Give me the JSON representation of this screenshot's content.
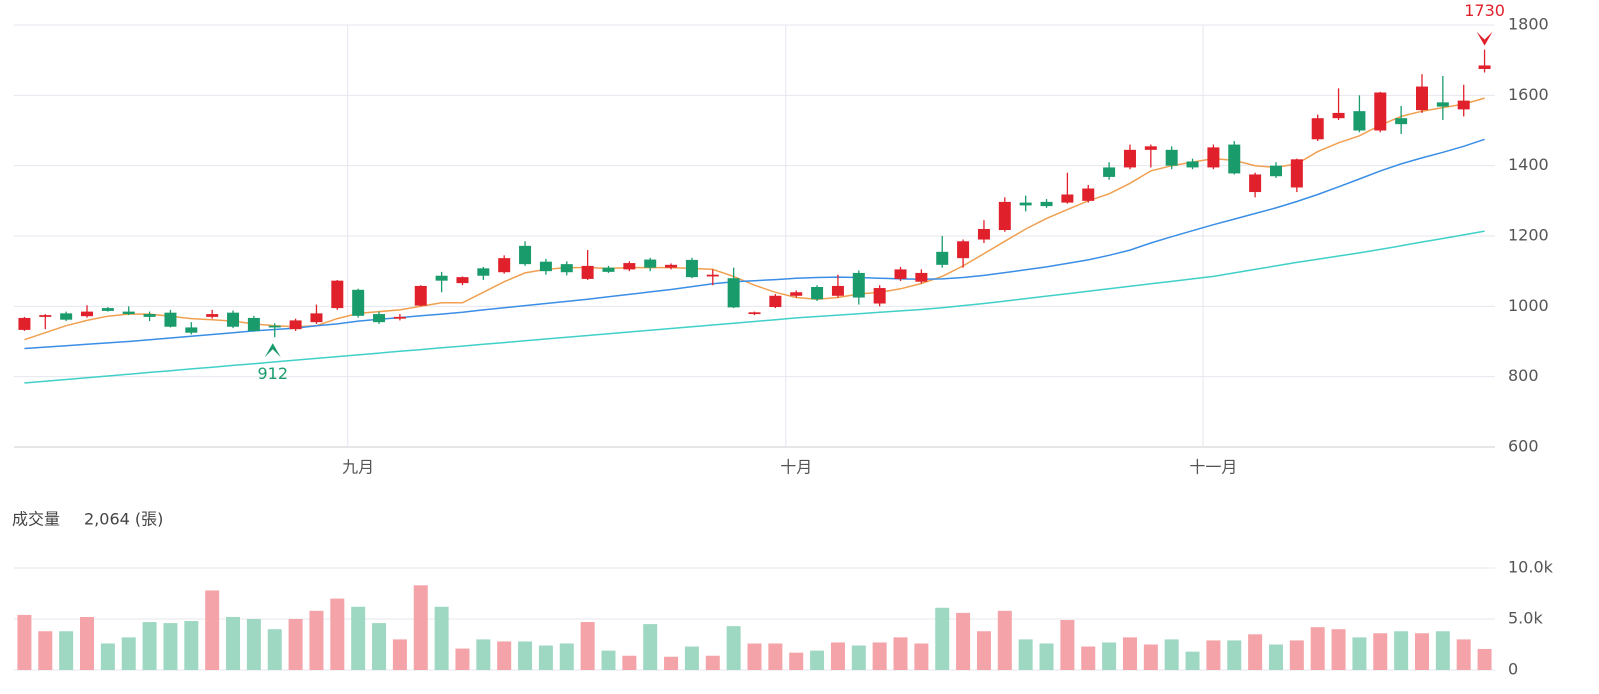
{
  "chart_data": [
    {
      "type": "candlestick",
      "categories": [
        null,
        null,
        null,
        null,
        null,
        null,
        null,
        null,
        null,
        null,
        null,
        null,
        null,
        null,
        null,
        null,
        "九月",
        null,
        null,
        null,
        null,
        null,
        null,
        null,
        null,
        null,
        null,
        null,
        null,
        null,
        null,
        null,
        null,
        null,
        null,
        null,
        null,
        "十月",
        null,
        null,
        null,
        null,
        null,
        null,
        null,
        null,
        null,
        null,
        null,
        null,
        null,
        null,
        null,
        null,
        null,
        null,
        null,
        "十一月",
        null,
        null,
        null,
        null,
        null,
        null,
        null,
        null,
        null,
        null,
        null,
        null,
        null
      ],
      "open": [
        933,
        970,
        980,
        972,
        995,
        985,
        978,
        982,
        940,
        970,
        982,
        967,
        945,
        935,
        955,
        995,
        1047,
        978,
        965,
        1002,
        1087,
        1066,
        1108,
        1097,
        1172,
        1127,
        1120,
        1078,
        1110,
        1105,
        1133,
        1110,
        1132,
        1085,
        1080,
        978,
        998,
        1030,
        1055,
        1030,
        1095,
        1008,
        1078,
        1070,
        1155,
        1137,
        1190,
        1217,
        1295,
        1297,
        1295,
        1300,
        1395,
        1395,
        1445,
        1445,
        1412,
        1395,
        1460,
        1325,
        1400,
        1338,
        1475,
        1535,
        1555,
        1500,
        1535,
        1558,
        1580,
        1560,
        1675
      ],
      "high": [
        970,
        978,
        985,
        1003,
        998,
        1000,
        985,
        990,
        955,
        990,
        988,
        973,
        952,
        965,
        1005,
        1075,
        1050,
        985,
        978,
        1060,
        1098,
        1085,
        1112,
        1145,
        1185,
        1135,
        1128,
        1160,
        1115,
        1128,
        1138,
        1122,
        1138,
        1105,
        1110,
        985,
        1035,
        1045,
        1060,
        1090,
        1102,
        1060,
        1112,
        1105,
        1200,
        1190,
        1245,
        1310,
        1315,
        1305,
        1380,
        1345,
        1410,
        1460,
        1460,
        1455,
        1420,
        1460,
        1470,
        1380,
        1410,
        1420,
        1545,
        1620,
        1600,
        1610,
        1570,
        1660,
        1655,
        1630,
        1730
      ],
      "low": [
        930,
        935,
        958,
        968,
        985,
        975,
        958,
        940,
        920,
        965,
        938,
        928,
        912,
        930,
        950,
        990,
        968,
        950,
        960,
        1000,
        1040,
        1060,
        1075,
        1093,
        1115,
        1090,
        1088,
        1075,
        1095,
        1100,
        1100,
        1105,
        1080,
        1060,
        995,
        975,
        995,
        1025,
        1015,
        1025,
        1005,
        1000,
        1072,
        1065,
        1110,
        1110,
        1180,
        1212,
        1270,
        1280,
        1292,
        1295,
        1360,
        1390,
        1395,
        1390,
        1390,
        1390,
        1375,
        1310,
        1365,
        1325,
        1470,
        1530,
        1495,
        1495,
        1490,
        1550,
        1530,
        1540,
        1665
      ],
      "close": [
        967,
        975,
        962,
        985,
        987,
        978,
        970,
        942,
        925,
        978,
        942,
        930,
        940,
        960,
        980,
        1073,
        973,
        955,
        970,
        1058,
        1073,
        1083,
        1087,
        1137,
        1120,
        1100,
        1097,
        1115,
        1098,
        1123,
        1110,
        1118,
        1083,
        1090,
        997,
        983,
        1030,
        1040,
        1020,
        1058,
        1025,
        1052,
        1105,
        1095,
        1118,
        1185,
        1220,
        1297,
        1287,
        1285,
        1318,
        1335,
        1368,
        1445,
        1455,
        1400,
        1395,
        1452,
        1378,
        1375,
        1370,
        1418,
        1535,
        1550,
        1500,
        1608,
        1518,
        1625,
        1568,
        1585,
        1685
      ],
      "up_color": "#e0202b",
      "down_color": "#1a9b6c",
      "series": [
        {
          "color": "#f0a050",
          "values": [
            905,
            925,
            945,
            960,
            972,
            978,
            978,
            972,
            965,
            962,
            958,
            950,
            945,
            942,
            945,
            965,
            980,
            985,
            990,
            1000,
            1010,
            1010,
            1040,
            1070,
            1095,
            1105,
            1110,
            1110,
            1108,
            1110,
            1110,
            1110,
            1108,
            1105,
            1085,
            1060,
            1040,
            1025,
            1020,
            1025,
            1035,
            1040,
            1050,
            1065,
            1085,
            1115,
            1150,
            1185,
            1220,
            1250,
            1275,
            1300,
            1320,
            1350,
            1385,
            1400,
            1410,
            1420,
            1415,
            1400,
            1395,
            1405,
            1440,
            1465,
            1485,
            1515,
            1540,
            1555,
            1565,
            1575,
            1592
          ]
        },
        {
          "color": "#3a8ee6",
          "values": [
            880,
            884,
            888,
            892,
            896,
            900,
            905,
            910,
            915,
            920,
            925,
            930,
            934,
            938,
            945,
            950,
            958,
            963,
            968,
            973,
            978,
            983,
            990,
            996,
            1002,
            1008,
            1014,
            1020,
            1027,
            1034,
            1041,
            1048,
            1056,
            1064,
            1070,
            1073,
            1076,
            1080,
            1082,
            1083,
            1082,
            1080,
            1078,
            1077,
            1078,
            1082,
            1088,
            1096,
            1104,
            1112,
            1122,
            1132,
            1145,
            1160,
            1180,
            1198,
            1215,
            1232,
            1248,
            1264,
            1280,
            1298,
            1318,
            1340,
            1362,
            1385,
            1405,
            1422,
            1438,
            1455,
            1475
          ]
        },
        {
          "color": "#40d0c8",
          "values": [
            782,
            787,
            792,
            797,
            802,
            807,
            812,
            817,
            822,
            827,
            832,
            837,
            842,
            847,
            852,
            857,
            862,
            867,
            872,
            877,
            882,
            887,
            892,
            897,
            902,
            907,
            912,
            917,
            922,
            927,
            932,
            937,
            942,
            947,
            952,
            957,
            962,
            967,
            971,
            975,
            979,
            983,
            987,
            991,
            996,
            1002,
            1008,
            1015,
            1022,
            1029,
            1036,
            1043,
            1050,
            1057,
            1064,
            1071,
            1078,
            1085,
            1095,
            1105,
            1115,
            1125,
            1134,
            1143,
            1152,
            1162,
            1172,
            1183,
            1193,
            1203,
            1214
          ]
        }
      ],
      "ylim": [
        600,
        1800
      ],
      "yticks": [
        600,
        800,
        1000,
        1200,
        1400,
        1600,
        1800
      ],
      "grid": true
    },
    {
      "type": "bar",
      "title": "成交量",
      "last_value_label": "2,064 (張)",
      "values": [
        5400,
        3800,
        3800,
        5200,
        2600,
        3200,
        4700,
        4600,
        4800,
        7800,
        5200,
        5000,
        4000,
        5000,
        5800,
        7000,
        6200,
        4600,
        3000,
        8300,
        6200,
        2100,
        3000,
        2800,
        2800,
        2400,
        2600,
        4700,
        1900,
        1400,
        4500,
        1300,
        2300,
        1400,
        4300,
        2600,
        2600,
        1700,
        1900,
        2700,
        2400,
        2700,
        3200,
        2600,
        6100,
        5600,
        3800,
        5800,
        3000,
        2600,
        4900,
        2300,
        2700,
        3200,
        2500,
        3000,
        1800,
        2900,
        2900,
        3500,
        2500,
        2900,
        4200,
        4000,
        3200,
        3600,
        3800,
        3600,
        3800,
        3000,
        2064
      ],
      "up_color": "#f4a3a8",
      "down_color": "#9fd8c2",
      "ylim": [
        0,
        10000
      ],
      "yticks": [
        0,
        {
          "value": 5000,
          "label": "5.0k"
        },
        {
          "value": 10000,
          "label": "10.0k"
        }
      ],
      "grid": true
    }
  ]
}
